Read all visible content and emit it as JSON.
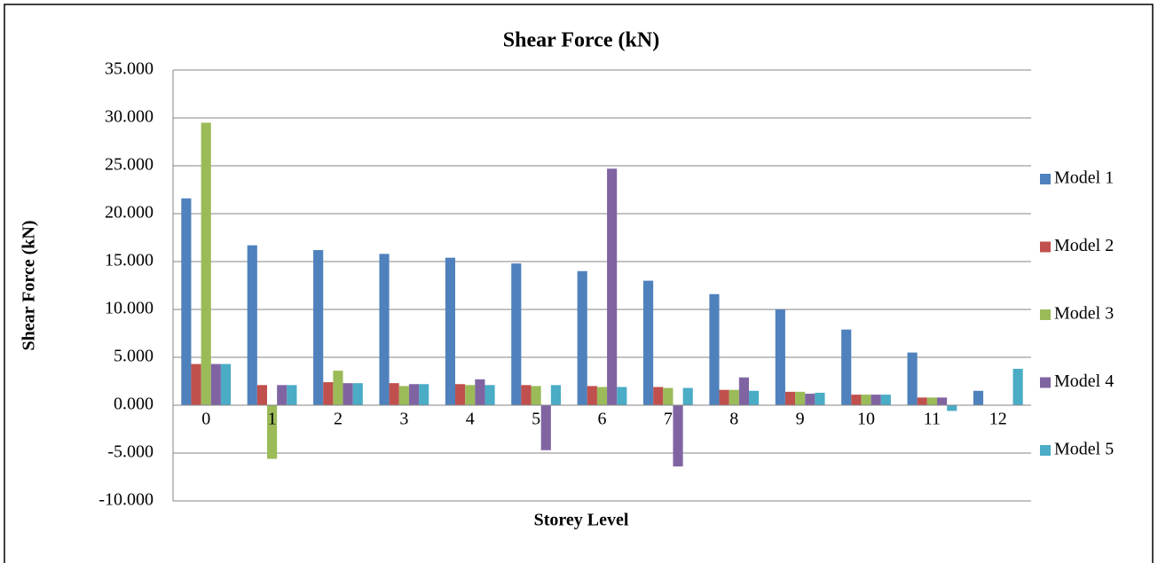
{
  "chart_data": {
    "type": "bar",
    "title": "Shear Force (kN)",
    "x_label": "Storey Level",
    "y_label": "Shear Force (kN)",
    "categories": [
      "0",
      "1",
      "2",
      "3",
      "4",
      "5",
      "6",
      "7",
      "8",
      "9",
      "10",
      "11",
      "12"
    ],
    "series": [
      {
        "name": "Model 1",
        "color": "#4f81bd",
        "values": [
          21.6,
          16.7,
          16.2,
          15.8,
          15.4,
          14.8,
          14.0,
          13.0,
          11.6,
          10.0,
          7.9,
          5.5,
          1.5
        ]
      },
      {
        "name": "Model 2",
        "color": "#c0504d",
        "values": [
          4.3,
          2.1,
          2.4,
          2.3,
          2.2,
          2.1,
          2.0,
          1.9,
          1.6,
          1.4,
          1.1,
          0.8,
          0
        ]
      },
      {
        "name": "Model 3",
        "color": "#9bbb59",
        "values": [
          29.5,
          -5.6,
          3.6,
          2.0,
          2.1,
          2.0,
          1.9,
          1.8,
          1.6,
          1.4,
          1.1,
          0.8,
          0
        ]
      },
      {
        "name": "Model 4",
        "color": "#8064a2",
        "values": [
          4.3,
          2.1,
          2.3,
          2.2,
          2.7,
          -4.7,
          24.7,
          -6.4,
          2.9,
          1.2,
          1.1,
          0.8,
          0
        ]
      },
      {
        "name": "Model 5",
        "color": "#4bacc6",
        "values": [
          4.3,
          2.1,
          2.3,
          2.2,
          2.1,
          2.1,
          1.9,
          1.8,
          1.5,
          1.3,
          1.1,
          -0.6,
          3.8
        ]
      }
    ],
    "ylim": [
      -10,
      35
    ],
    "yticks": [
      {
        "value": -10,
        "label": "-10.000"
      },
      {
        "value": -5,
        "label": "-5.000"
      },
      {
        "value": 0,
        "label": "0.000"
      },
      {
        "value": 5,
        "label": "5.000"
      },
      {
        "value": 10,
        "label": "10.000"
      },
      {
        "value": 15,
        "label": "15.000"
      },
      {
        "value": 20,
        "label": "20.000"
      },
      {
        "value": 25,
        "label": "25.000"
      },
      {
        "value": 30,
        "label": "30.000"
      },
      {
        "value": 35,
        "label": "35.000"
      }
    ],
    "grid": true,
    "legend": "right"
  }
}
